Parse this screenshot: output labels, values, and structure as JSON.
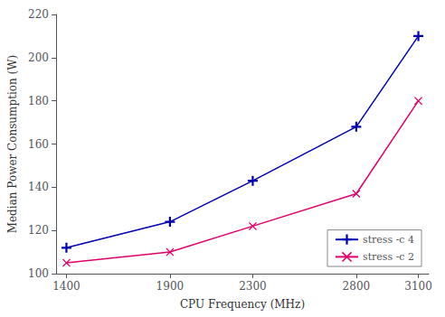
{
  "chart_data": {
    "type": "line",
    "x": [
      1400,
      1900,
      2300,
      2800,
      3100
    ],
    "series": [
      {
        "name": "stress -c 4",
        "color": "#0000b0",
        "marker": "+",
        "values": [
          112,
          124,
          143,
          168,
          210
        ]
      },
      {
        "name": "stress -c 2",
        "color": "#e0006a",
        "marker": "x",
        "values": [
          105,
          110,
          122,
          137,
          180
        ]
      }
    ],
    "xlabel": "CPU Frequency (MHz)",
    "ylabel": "Median Power Consumption (W)",
    "xlim": [
      1350,
      3150
    ],
    "ylim": [
      100,
      220
    ],
    "xticks": [
      1400,
      1900,
      2300,
      2800,
      3100
    ],
    "yticks": [
      100,
      120,
      140,
      160,
      180,
      200,
      220
    ],
    "legend": "lower right",
    "grid": false
  }
}
